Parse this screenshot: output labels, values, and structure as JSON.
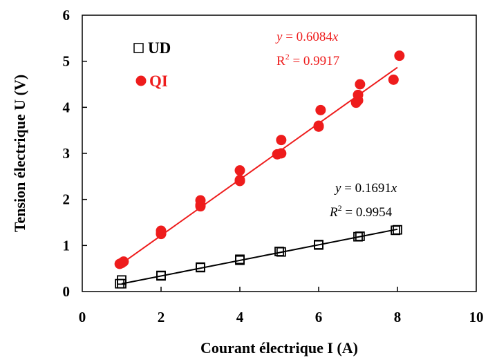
{
  "chart_data": {
    "type": "scatter",
    "xlabel": "Courant électrique I (A)",
    "ylabel": "Tension électrique U (V)",
    "xlim": [
      0,
      10
    ],
    "ylim": [
      0,
      6
    ],
    "xticks": [
      "0",
      "2",
      "4",
      "6",
      "8",
      "10"
    ],
    "yticks": [
      "0",
      "1",
      "2",
      "3",
      "4",
      "5",
      "6"
    ],
    "grid": false,
    "legend_position": "top-left",
    "series": [
      {
        "name": "UD",
        "marker": "open-square",
        "color": "#000000",
        "points": [
          [
            0.95,
            0.17
          ],
          [
            1.0,
            0.25
          ],
          [
            1.0,
            0.17
          ],
          [
            2.0,
            0.35
          ],
          [
            2.0,
            0.34
          ],
          [
            3.0,
            0.53
          ],
          [
            3.0,
            0.52
          ],
          [
            4.0,
            0.68
          ],
          [
            4.0,
            0.7
          ],
          [
            5.0,
            0.87
          ],
          [
            5.05,
            0.86
          ],
          [
            6.0,
            1.02
          ],
          [
            6.0,
            1.01
          ],
          [
            7.0,
            1.19
          ],
          [
            7.05,
            1.2
          ],
          [
            8.0,
            1.34
          ],
          [
            7.95,
            1.33
          ]
        ],
        "fit": {
          "slope": 0.1691,
          "x_range": [
            1.0,
            8.0
          ]
        },
        "equation": {
          "y": "y",
          "eq": " = 0.1691",
          "x": "x"
        },
        "r2": {
          "r": "R",
          "sup": "2",
          "eq": " = 0.9954"
        }
      },
      {
        "name": "QI",
        "marker": "filled-circle",
        "color": "#ee1c1c",
        "points": [
          [
            0.95,
            0.6
          ],
          [
            1.05,
            0.65
          ],
          [
            1.0,
            0.62
          ],
          [
            2.0,
            1.25
          ],
          [
            2.0,
            1.32
          ],
          [
            2.0,
            1.26
          ],
          [
            3.0,
            1.85
          ],
          [
            3.0,
            1.98
          ],
          [
            3.0,
            1.88
          ],
          [
            4.0,
            2.4
          ],
          [
            4.0,
            2.63
          ],
          [
            4.0,
            2.42
          ],
          [
            4.95,
            2.98
          ],
          [
            5.05,
            3.0
          ],
          [
            5.05,
            3.29
          ],
          [
            6.0,
            3.58
          ],
          [
            6.05,
            3.94
          ],
          [
            6.0,
            3.6
          ],
          [
            6.95,
            4.1
          ],
          [
            7.0,
            4.27
          ],
          [
            7.0,
            4.15
          ],
          [
            7.05,
            4.5
          ],
          [
            7.9,
            4.6
          ],
          [
            8.05,
            5.12
          ]
        ],
        "fit": {
          "slope": 0.6084,
          "x_range": [
            0.9,
            8.0
          ]
        },
        "equation": {
          "y": "y",
          "eq": " = 0.6084",
          "x": "x"
        },
        "r2": {
          "r": "R",
          "sup": "2",
          "eq": " = 0.9917"
        }
      }
    ]
  }
}
